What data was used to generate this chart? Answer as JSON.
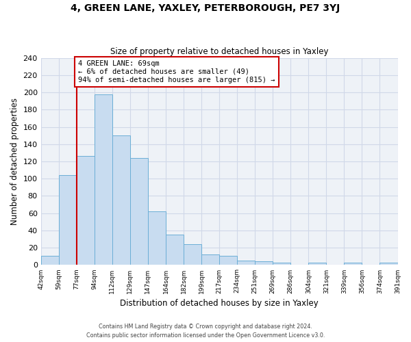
{
  "title": "4, GREEN LANE, YAXLEY, PETERBOROUGH, PE7 3YJ",
  "subtitle": "Size of property relative to detached houses in Yaxley",
  "xlabel": "Distribution of detached houses by size in Yaxley",
  "ylabel": "Number of detached properties",
  "bin_labels": [
    "42sqm",
    "59sqm",
    "77sqm",
    "94sqm",
    "112sqm",
    "129sqm",
    "147sqm",
    "164sqm",
    "182sqm",
    "199sqm",
    "217sqm",
    "234sqm",
    "251sqm",
    "269sqm",
    "286sqm",
    "304sqm",
    "321sqm",
    "339sqm",
    "356sqm",
    "374sqm",
    "391sqm"
  ],
  "bar_heights": [
    11,
    104,
    126,
    198,
    150,
    124,
    62,
    35,
    24,
    12,
    11,
    5,
    4,
    3,
    0,
    3,
    0,
    3,
    0,
    3
  ],
  "bar_color": "#c8dcf0",
  "bar_edge_color": "#6baed6",
  "vline_color": "#cc0000",
  "annotation_line1": "4 GREEN LANE: 69sqm",
  "annotation_line2": "← 6% of detached houses are smaller (49)",
  "annotation_line3": "94% of semi-detached houses are larger (815) →",
  "annotation_box_edge": "#cc0000",
  "ylim": [
    0,
    240
  ],
  "yticks": [
    0,
    20,
    40,
    60,
    80,
    100,
    120,
    140,
    160,
    180,
    200,
    220,
    240
  ],
  "footer1": "Contains HM Land Registry data © Crown copyright and database right 2024.",
  "footer2": "Contains public sector information licensed under the Open Government Licence v3.0.",
  "background_color": "#eef2f7",
  "grid_color": "#d0d8e8"
}
